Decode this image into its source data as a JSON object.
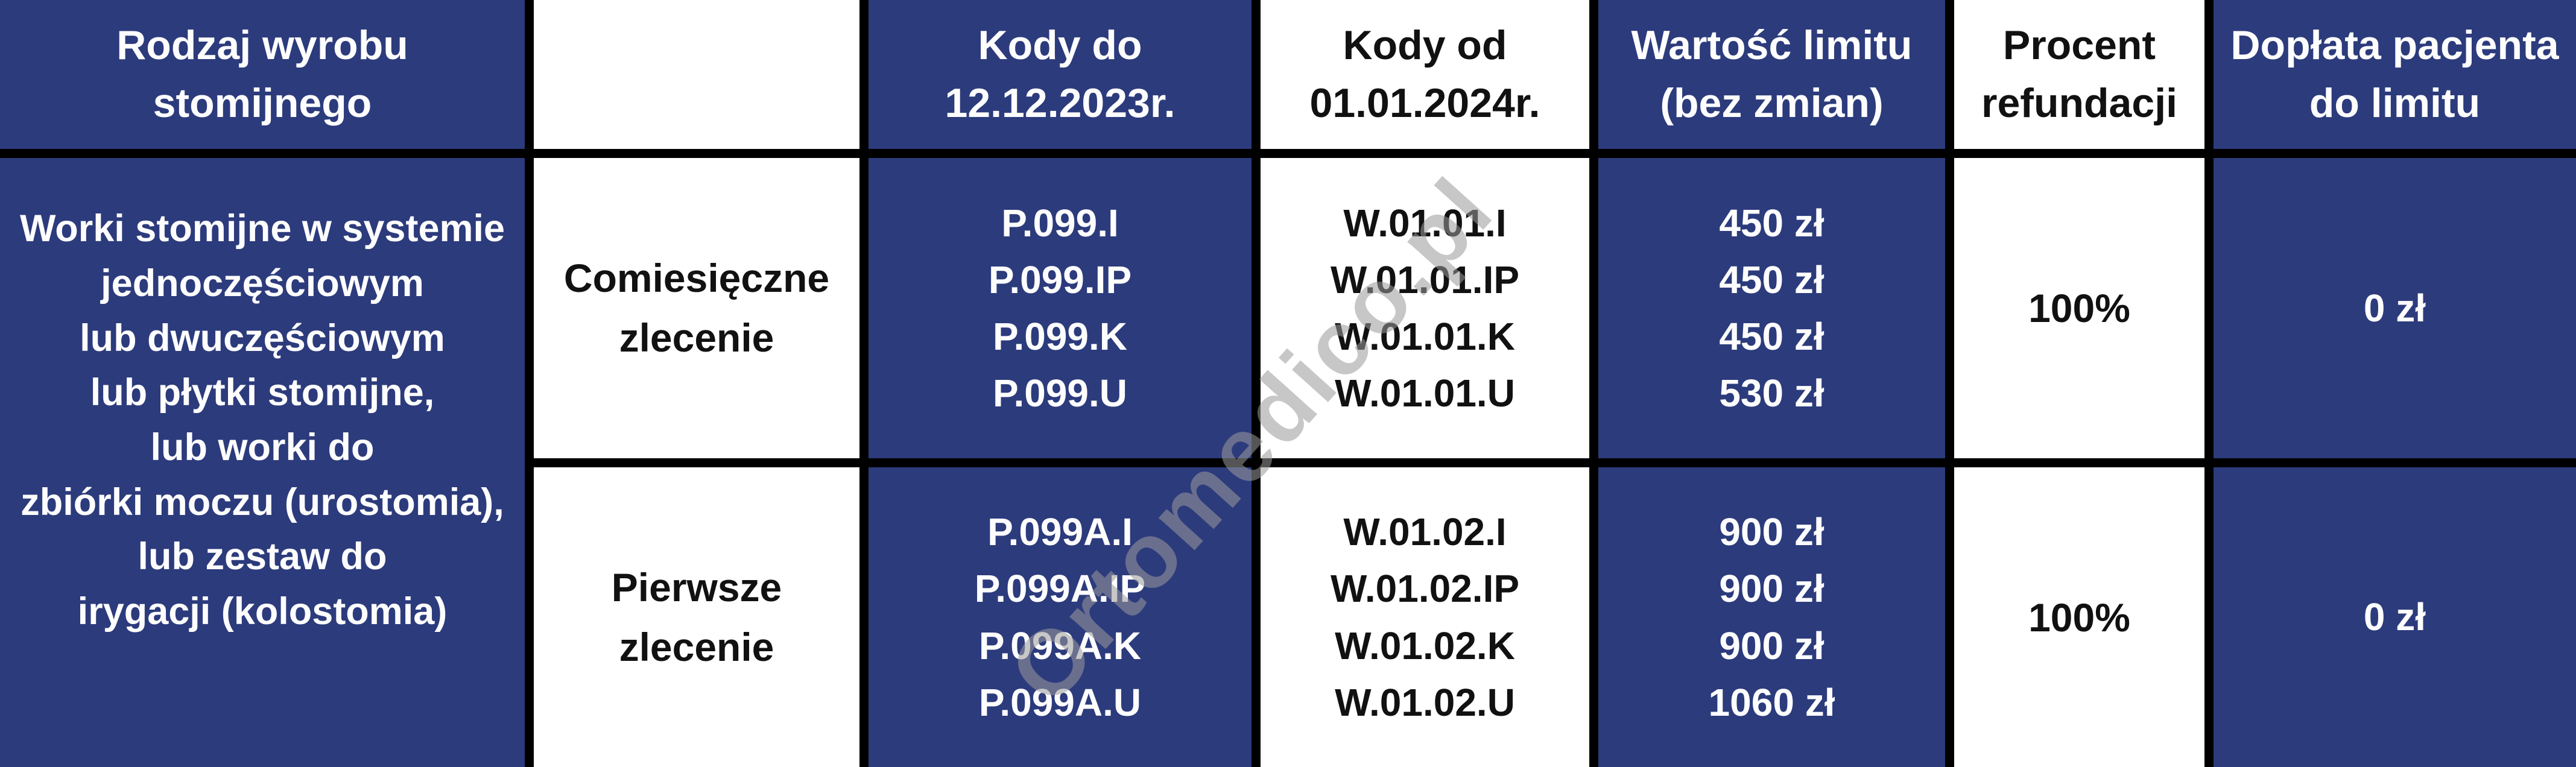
{
  "table": {
    "header": {
      "col1": [
        "Rodzaj wyrobu",
        "stomijnego"
      ],
      "col2": "",
      "col3": [
        "Kody do",
        "12.12.2023r."
      ],
      "col4": [
        "Kody od",
        "01.01.2024r."
      ],
      "col5": [
        "Wartość limitu",
        "(bez zmian)"
      ],
      "col6": [
        "Procent",
        "refundacji"
      ],
      "col7": [
        "Dopłata pacjenta",
        "do limitu"
      ]
    },
    "product": [
      "Worki stomijne w systemie",
      "jednoczęściowym",
      "lub dwuczęściowym",
      "lub płytki stomijne,",
      "lub worki do",
      "zbiórki moczu (urostomia),",
      "lub zestaw do",
      "irygacji (kolostomia)"
    ],
    "rows": [
      {
        "order_type": [
          "Comiesięczne",
          "zlecenie"
        ],
        "codes_old": [
          "P.099.I",
          "P.099.IP",
          "P.099.K",
          "P.099.U"
        ],
        "codes_new": [
          "W.01.01.I",
          "W.01.01.IP",
          "W.01.01.K",
          "W.01.01.U"
        ],
        "limit_values": [
          "450 zł",
          "450 zł",
          "450 zł",
          "530 zł"
        ],
        "refund_percent": "100%",
        "patient_copay": "0 zł"
      },
      {
        "order_type": [
          "Pierwsze",
          "zlecenie"
        ],
        "codes_old": [
          "P.099A.I",
          "P.099A.IP",
          "P.099A.K",
          "P.099A.U"
        ],
        "codes_new": [
          "W.01.02.I",
          "W.01.02.IP",
          "W.01.02.K",
          "W.01.02.U"
        ],
        "limit_values": [
          "900 zł",
          "900 zł",
          "900 zł",
          "1060 zł"
        ],
        "refund_percent": "100%",
        "patient_copay": "0 zł"
      }
    ]
  },
  "watermark": {
    "text": "Ortomedico.pl"
  },
  "colors": {
    "navy": "#2c3b7c",
    "border": "#000000",
    "text_on_navy": "#fdfdfd",
    "text_on_white": "#111111",
    "watermark": "#9b9b9b"
  },
  "chart_data": {
    "type": "table",
    "title": "Refundacja wyrobów stomijnych — zmiana kodów od 01.01.2024",
    "columns": [
      "Rodzaj wyrobu stomijnego",
      "",
      "Kody do 12.12.2023r.",
      "Kody od 01.01.2024r.",
      "Wartość limitu (bez zmian)",
      "Procent refundacji",
      "Dopłata pacjenta do limitu"
    ],
    "rows": [
      {
        "rodzaj_wyrobu": "Worki stomijne w systemie jednoczęściowym lub dwuczęściowym lub płytki stomijne, lub worki do zbiórki moczu (urostomia), lub zestaw do irygacji (kolostomia)",
        "zlecenie": "Comiesięczne zlecenie",
        "kody_do_12_12_2023": [
          "P.099.I",
          "P.099.IP",
          "P.099.K",
          "P.099.U"
        ],
        "kody_od_01_01_2024": [
          "W.01.01.I",
          "W.01.01.IP",
          "W.01.01.K",
          "W.01.01.U"
        ],
        "wartosc_limitu": [
          "450 zł",
          "450 zł",
          "450 zł",
          "530 zł"
        ],
        "procent_refundacji": "100%",
        "doplata_pacjenta": "0 zł"
      },
      {
        "rodzaj_wyrobu": "Worki stomijne w systemie jednoczęściowym lub dwuczęściowym lub płytki stomijne, lub worki do zbiórki moczu (urostomia), lub zestaw do irygacji (kolostomia)",
        "zlecenie": "Pierwsze zlecenie",
        "kody_do_12_12_2023": [
          "P.099A.I",
          "P.099A.IP",
          "P.099A.K",
          "P.099A.U"
        ],
        "kody_od_01_01_2024": [
          "W.01.02.I",
          "W.01.02.IP",
          "W.01.02.K",
          "W.01.02.U"
        ],
        "wartosc_limitu": [
          "900 zł",
          "900 zł",
          "900 zł",
          "1060 zł"
        ],
        "procent_refundacji": "100%",
        "doplata_pacjenta": "0 zł"
      }
    ],
    "layout": {
      "grid": true,
      "header_style": "alternating navy/white",
      "watermark": "Ortomedico.pl diagonal"
    }
  }
}
